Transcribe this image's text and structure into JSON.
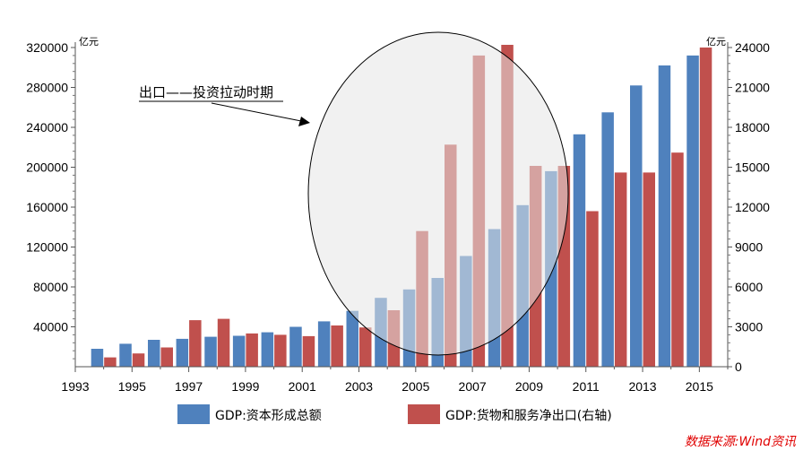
{
  "chart_data": {
    "type": "bar",
    "x": [
      1994,
      1995,
      1996,
      1997,
      1998,
      1999,
      2000,
      2001,
      2002,
      2003,
      2004,
      2005,
      2006,
      2007,
      2008,
      2009,
      2010,
      2011,
      2012,
      2013,
      2014,
      2015
    ],
    "x_tick_labels": [
      "1993",
      "1995",
      "1997",
      "1999",
      "2001",
      "2003",
      "2005",
      "2007",
      "2009",
      "2011",
      "2013",
      "2015"
    ],
    "series": [
      {
        "name": "GDP:资本形成总额",
        "axis": "left",
        "color": "#4f81bd",
        "values": [
          18000,
          23000,
          27000,
          28000,
          30000,
          31000,
          34500,
          40000,
          45500,
          56000,
          69000,
          77500,
          89000,
          111000,
          138000,
          162000,
          196000,
          233000,
          255000,
          282000,
          302000,
          312000
        ]
      },
      {
        "name": "GDP:货物和服务净出口(右轴)",
        "axis": "right",
        "color": "#c0504d",
        "values": [
          700,
          1000,
          1450,
          3500,
          3600,
          2500,
          2400,
          2300,
          3100,
          2950,
          4250,
          10200,
          16700,
          23400,
          24200,
          15100,
          15100,
          11700,
          14600,
          14600,
          16100,
          24000
        ]
      }
    ],
    "y_left": {
      "unit": "亿元",
      "min": 0,
      "max": 320000,
      "ticks": [
        40000,
        80000,
        120000,
        160000,
        200000,
        240000,
        280000,
        320000
      ]
    },
    "y_right": {
      "unit": "亿元",
      "min": 0,
      "max": 24000,
      "ticks": [
        0,
        3000,
        6000,
        9000,
        12000,
        15000,
        18000,
        21000,
        24000
      ]
    },
    "annotation": "出口——投资拉动时期",
    "grid": false,
    "legend_position": "bottom"
  },
  "colors": {
    "highlight_fill": "#e6e6e6",
    "source_text": "#e00000"
  },
  "source_note": "数据来源:Wind资讯"
}
